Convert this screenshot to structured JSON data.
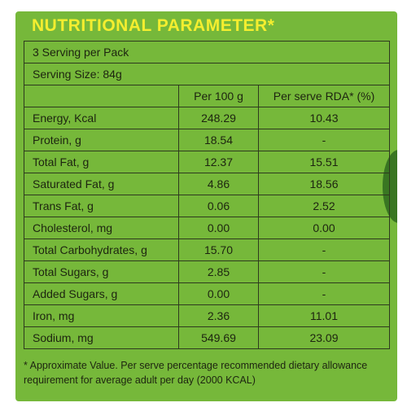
{
  "title": "NUTRITIONAL PARAMETER*",
  "serving_per_pack": "3 Serving per Pack",
  "serving_size": "Serving Size: 84g",
  "columns": [
    "",
    "Per 100 g",
    "Per serve RDA* (%)"
  ],
  "rows": [
    {
      "name": "Energy, Kcal",
      "per100": "248.29",
      "rda": "10.43"
    },
    {
      "name": "Protein, g",
      "per100": "18.54",
      "rda": "-"
    },
    {
      "name": "Total Fat, g",
      "per100": "12.37",
      "rda": "15.51"
    },
    {
      "name": "Saturated Fat, g",
      "per100": "4.86",
      "rda": "18.56"
    },
    {
      "name": "Trans Fat, g",
      "per100": "0.06",
      "rda": "2.52"
    },
    {
      "name": "Cholesterol, mg",
      "per100": "0.00",
      "rda": "0.00"
    },
    {
      "name": "Total Carbohydrates, g",
      "per100": "15.70",
      "rda": "-"
    },
    {
      "name": "Total Sugars, g",
      "per100": "2.85",
      "rda": "-"
    },
    {
      "name": "Added Sugars, g",
      "per100": "0.00",
      "rda": "-"
    },
    {
      "name": "Iron, mg",
      "per100": "2.36",
      "rda": "11.01"
    },
    {
      "name": "Sodium, mg",
      "per100": "549.69",
      "rda": "23.09"
    }
  ],
  "footnote": "* Approximate Value. Per serve percentage recommended dietary allowance requirement for average adult per day (2000 KCAL)",
  "colors": {
    "background": "#76b83a",
    "title": "#f4ee2f",
    "border": "#2e3a1e",
    "text": "#1d2410"
  }
}
